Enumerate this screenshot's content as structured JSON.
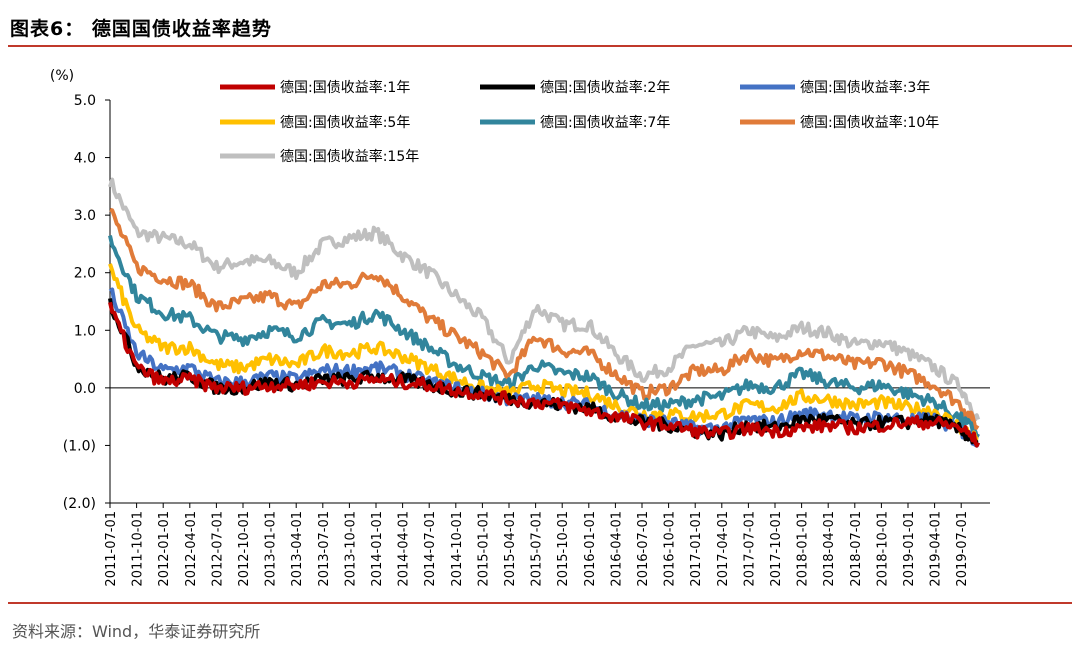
{
  "header": {
    "title": "图表6：  德国国债收益率趋势"
  },
  "footer": {
    "source": "资料来源：Wind，华泰证券研究所"
  },
  "chart_data": {
    "type": "line",
    "unit_label": "(%)",
    "y_ticks": [
      "5.0",
      "4.0",
      "3.0",
      "2.0",
      "1.0",
      "0.0",
      "(1.0)",
      "(2.0)"
    ],
    "ylim": [
      -2.0,
      5.0
    ],
    "x_ticks": [
      "2011-07-01",
      "2011-10-01",
      "2012-01-01",
      "2012-04-01",
      "2012-07-01",
      "2012-10-01",
      "2013-01-01",
      "2013-04-01",
      "2013-07-01",
      "2013-10-01",
      "2014-01-01",
      "2014-04-01",
      "2014-07-01",
      "2014-10-01",
      "2015-01-01",
      "2015-04-01",
      "2015-07-01",
      "2015-10-01",
      "2016-01-01",
      "2016-04-01",
      "2016-07-01",
      "2016-10-01",
      "2017-01-01",
      "2017-04-01",
      "2017-07-01",
      "2017-10-01",
      "2018-01-01",
      "2018-04-01",
      "2018-07-01",
      "2018-10-01",
      "2019-01-01",
      "2019-04-01",
      "2019-07-01"
    ],
    "x": [
      "2011-07",
      "2011-10",
      "2012-01",
      "2012-04",
      "2012-07",
      "2012-10",
      "2013-01",
      "2013-04",
      "2013-07",
      "2013-10",
      "2014-01",
      "2014-04",
      "2014-07",
      "2014-10",
      "2015-01",
      "2015-04",
      "2015-07",
      "2015-10",
      "2016-01",
      "2016-04",
      "2016-07",
      "2016-10",
      "2017-01",
      "2017-04",
      "2017-07",
      "2017-10",
      "2018-01",
      "2018-04",
      "2018-07",
      "2018-10",
      "2019-01",
      "2019-04",
      "2019-07",
      "2019-09"
    ],
    "series": [
      {
        "name": "德国:国债收益率:1年",
        "color": "#c00000",
        "values": [
          1.4,
          0.35,
          0.1,
          0.15,
          0.0,
          0.0,
          0.05,
          0.05,
          0.1,
          0.1,
          0.15,
          0.1,
          0.05,
          -0.05,
          -0.1,
          -0.2,
          -0.25,
          -0.3,
          -0.4,
          -0.5,
          -0.6,
          -0.65,
          -0.75,
          -0.8,
          -0.7,
          -0.75,
          -0.7,
          -0.65,
          -0.7,
          -0.65,
          -0.6,
          -0.6,
          -0.7,
          -0.95
        ]
      },
      {
        "name": "德国:国债收益率:2年",
        "color": "#000000",
        "values": [
          1.5,
          0.4,
          0.15,
          0.2,
          0.0,
          0.0,
          0.1,
          0.05,
          0.15,
          0.15,
          0.2,
          0.15,
          0.05,
          -0.05,
          -0.1,
          -0.2,
          -0.25,
          -0.3,
          -0.35,
          -0.5,
          -0.6,
          -0.65,
          -0.75,
          -0.8,
          -0.65,
          -0.7,
          -0.55,
          -0.55,
          -0.65,
          -0.6,
          -0.6,
          -0.55,
          -0.75,
          -0.95
        ]
      },
      {
        "name": "德国:国债收益率:3年",
        "color": "#4472c4",
        "values": [
          1.7,
          0.6,
          0.3,
          0.35,
          0.1,
          0.1,
          0.2,
          0.15,
          0.3,
          0.3,
          0.35,
          0.25,
          0.1,
          0.0,
          -0.1,
          -0.2,
          -0.2,
          -0.25,
          -0.3,
          -0.45,
          -0.55,
          -0.6,
          -0.7,
          -0.7,
          -0.55,
          -0.6,
          -0.45,
          -0.45,
          -0.55,
          -0.5,
          -0.55,
          -0.55,
          -0.75,
          -0.95
        ]
      },
      {
        "name": "德国:国债收益率:5年",
        "color": "#ffc000",
        "values": [
          2.1,
          1.0,
          0.7,
          0.7,
          0.4,
          0.35,
          0.5,
          0.4,
          0.65,
          0.6,
          0.7,
          0.55,
          0.35,
          0.15,
          0.0,
          -0.1,
          0.05,
          -0.05,
          -0.1,
          -0.3,
          -0.45,
          -0.45,
          -0.5,
          -0.45,
          -0.3,
          -0.35,
          -0.15,
          -0.2,
          -0.3,
          -0.25,
          -0.35,
          -0.4,
          -0.7,
          -0.9
        ]
      },
      {
        "name": "德国:国债收益率:7年",
        "color": "#31859c",
        "values": [
          2.6,
          1.6,
          1.3,
          1.2,
          0.9,
          0.85,
          1.0,
          0.9,
          1.15,
          1.1,
          1.3,
          1.0,
          0.7,
          0.4,
          0.2,
          0.05,
          0.4,
          0.25,
          0.2,
          -0.1,
          -0.3,
          -0.3,
          -0.2,
          -0.15,
          0.05,
          0.0,
          0.25,
          0.1,
          0.0,
          0.05,
          -0.1,
          -0.25,
          -0.55,
          -0.8
        ]
      },
      {
        "name": "德国:国债收益率:10年",
        "color": "#e07b39",
        "values": [
          3.1,
          2.1,
          1.9,
          1.8,
          1.4,
          1.5,
          1.6,
          1.4,
          1.8,
          1.8,
          2.0,
          1.6,
          1.2,
          0.9,
          0.6,
          0.2,
          0.9,
          0.65,
          0.6,
          0.25,
          -0.1,
          0.0,
          0.3,
          0.3,
          0.6,
          0.45,
          0.65,
          0.55,
          0.4,
          0.45,
          0.25,
          0.05,
          -0.3,
          -0.7
        ]
      },
      {
        "name": "德国:国债收益率:15年",
        "color": "#bfbfbf",
        "values": [
          3.6,
          2.7,
          2.6,
          2.5,
          2.1,
          2.2,
          2.2,
          2.0,
          2.5,
          2.6,
          2.7,
          2.3,
          2.0,
          1.6,
          1.2,
          0.45,
          1.4,
          1.1,
          1.1,
          0.6,
          0.2,
          0.35,
          0.75,
          0.75,
          1.0,
          0.85,
          1.05,
          0.95,
          0.75,
          0.8,
          0.6,
          0.35,
          0.0,
          -0.55
        ]
      }
    ]
  }
}
